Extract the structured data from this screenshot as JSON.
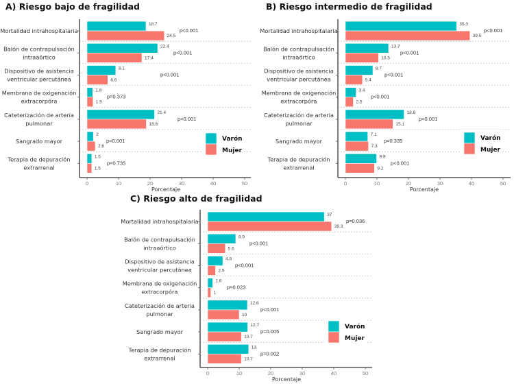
{
  "colors": {
    "varon": "#00BFC4",
    "mujer": "#F8766D"
  },
  "chart_data": [
    {
      "type": "bar",
      "orientation": "horizontal",
      "title": "A) Riesgo bajo de fragilidad",
      "xlabel": "Porcentaje",
      "xlim": [
        0,
        50
      ],
      "xticks": [
        0,
        10,
        20,
        30,
        40,
        50
      ],
      "grid": "horizontal dashed separators",
      "legend": {
        "placement": "bottom-right",
        "entries": [
          "Varón",
          "Mujer"
        ]
      },
      "categories": [
        [
          "Mortalidad intrahospitalaria"
        ],
        [
          "Balón de contrapulsación",
          "intraaórtico"
        ],
        [
          "Dispositivo de asistencia",
          "ventricular percutánea"
        ],
        [
          "Membrana de oxigenación",
          "extracorpóra"
        ],
        [
          "Cateterización de arteria",
          "pulmonar"
        ],
        [
          "Sangrado mayor"
        ],
        [
          "Terapia de depuración",
          "extrarrenal"
        ]
      ],
      "series": [
        {
          "name": "Varón",
          "values": [
            18.7,
            22.4,
            9.1,
            1.8,
            21.4,
            2,
            1.5
          ],
          "labels": [
            "18.7",
            "22.4",
            "9.1",
            "1.8",
            "21.4",
            "2",
            "1.5"
          ]
        },
        {
          "name": "Mujer",
          "values": [
            24.5,
            17.4,
            6.6,
            1.9,
            18.8,
            2.6,
            1.5
          ],
          "labels": [
            "24.5",
            "17.4",
            "6.6",
            "1.9",
            "18.8",
            "2.6",
            "1.5"
          ]
        }
      ],
      "p_values": [
        "p<0.001",
        "p<0.001",
        "p<0.001",
        "p=0.373",
        "p<0.001",
        "p<0.001",
        "p=0.735"
      ]
    },
    {
      "type": "bar",
      "orientation": "horizontal",
      "title": "B) Riesgo intermedio de fragilidad",
      "xlabel": "Porcentaje",
      "xlim": [
        0,
        50
      ],
      "xticks": [
        0,
        10,
        20,
        30,
        40,
        50
      ],
      "grid": "horizontal dashed separators",
      "legend": {
        "placement": "bottom-right",
        "entries": [
          "Varón",
          "Mujer"
        ]
      },
      "categories": [
        [
          "Mortalidad intrahospitalaria"
        ],
        [
          "Balón de contrapulsación",
          "intraaórtico"
        ],
        [
          "Dispositivo de asistencia",
          "ventricular percutánea"
        ],
        [
          "Membrana de oxigenación",
          "extracorpóra"
        ],
        [
          "Cateterización de arteria",
          "pulmonar"
        ],
        [
          "Sangrado mayor"
        ],
        [
          "Terapia de depuración",
          "extrarrenal"
        ]
      ],
      "series": [
        {
          "name": "Varón",
          "values": [
            35.3,
            13.7,
            8.7,
            3.4,
            18.6,
            7.1,
            9.9
          ],
          "labels": [
            "35.3",
            "13.7",
            "8.7",
            "3.4",
            "18.6",
            "7.1",
            "9.9"
          ]
        },
        {
          "name": "Mujer",
          "values": [
            39.5,
            10.5,
            5.4,
            2.5,
            15.1,
            7.3,
            9.2
          ],
          "labels": [
            "39.5",
            "10.5",
            "5.4",
            "2.5",
            "15.1",
            "7.3",
            "9.2"
          ]
        }
      ],
      "p_values": [
        "p<0.001",
        "p<0.001",
        "p<0.001",
        "p<0.001",
        "p<0.001",
        "p=0.335",
        "p<0.001"
      ]
    },
    {
      "type": "bar",
      "orientation": "horizontal",
      "title": "C) Riesgo alto de fragilidad",
      "xlabel": "Porcentaje",
      "xlim": [
        0,
        50
      ],
      "xticks": [
        0,
        10,
        20,
        30,
        40,
        50
      ],
      "grid": "horizontal dashed separators",
      "legend": {
        "placement": "bottom-right",
        "entries": [
          "Varón",
          "Mujer"
        ]
      },
      "categories": [
        [
          "Mortalidad intrahospitalaria"
        ],
        [
          "Balón de contrapulsación",
          "intraaórtico"
        ],
        [
          "Dispositivo de asistencia",
          "ventricular percutánea"
        ],
        [
          "Membrana de oxigenación",
          "extracorpóra"
        ],
        [
          "Cateterización de arteria",
          "pulmonar"
        ],
        [
          "Sangrado mayor"
        ],
        [
          "Terapia de depuración",
          "extrarrenal"
        ]
      ],
      "series": [
        {
          "name": "Varón",
          "values": [
            37,
            8.9,
            4.8,
            1.6,
            12.6,
            12.7,
            13
          ],
          "labels": [
            "37",
            "8.9",
            "4.8",
            "1.6",
            "12.6",
            "12.7",
            "13"
          ]
        },
        {
          "name": "Mujer",
          "values": [
            39.3,
            5.6,
            2.5,
            1,
            10,
            10.7,
            10.7
          ],
          "labels": [
            "39.3",
            "5.6",
            "2.5",
            "1",
            "10",
            "10.7",
            "10.7"
          ]
        }
      ],
      "p_values": [
        "p=0.036",
        "p<0.001",
        "p<0.001",
        "p=0.023",
        "p<0.001",
        "p=0.005",
        "p=0.002"
      ]
    }
  ]
}
